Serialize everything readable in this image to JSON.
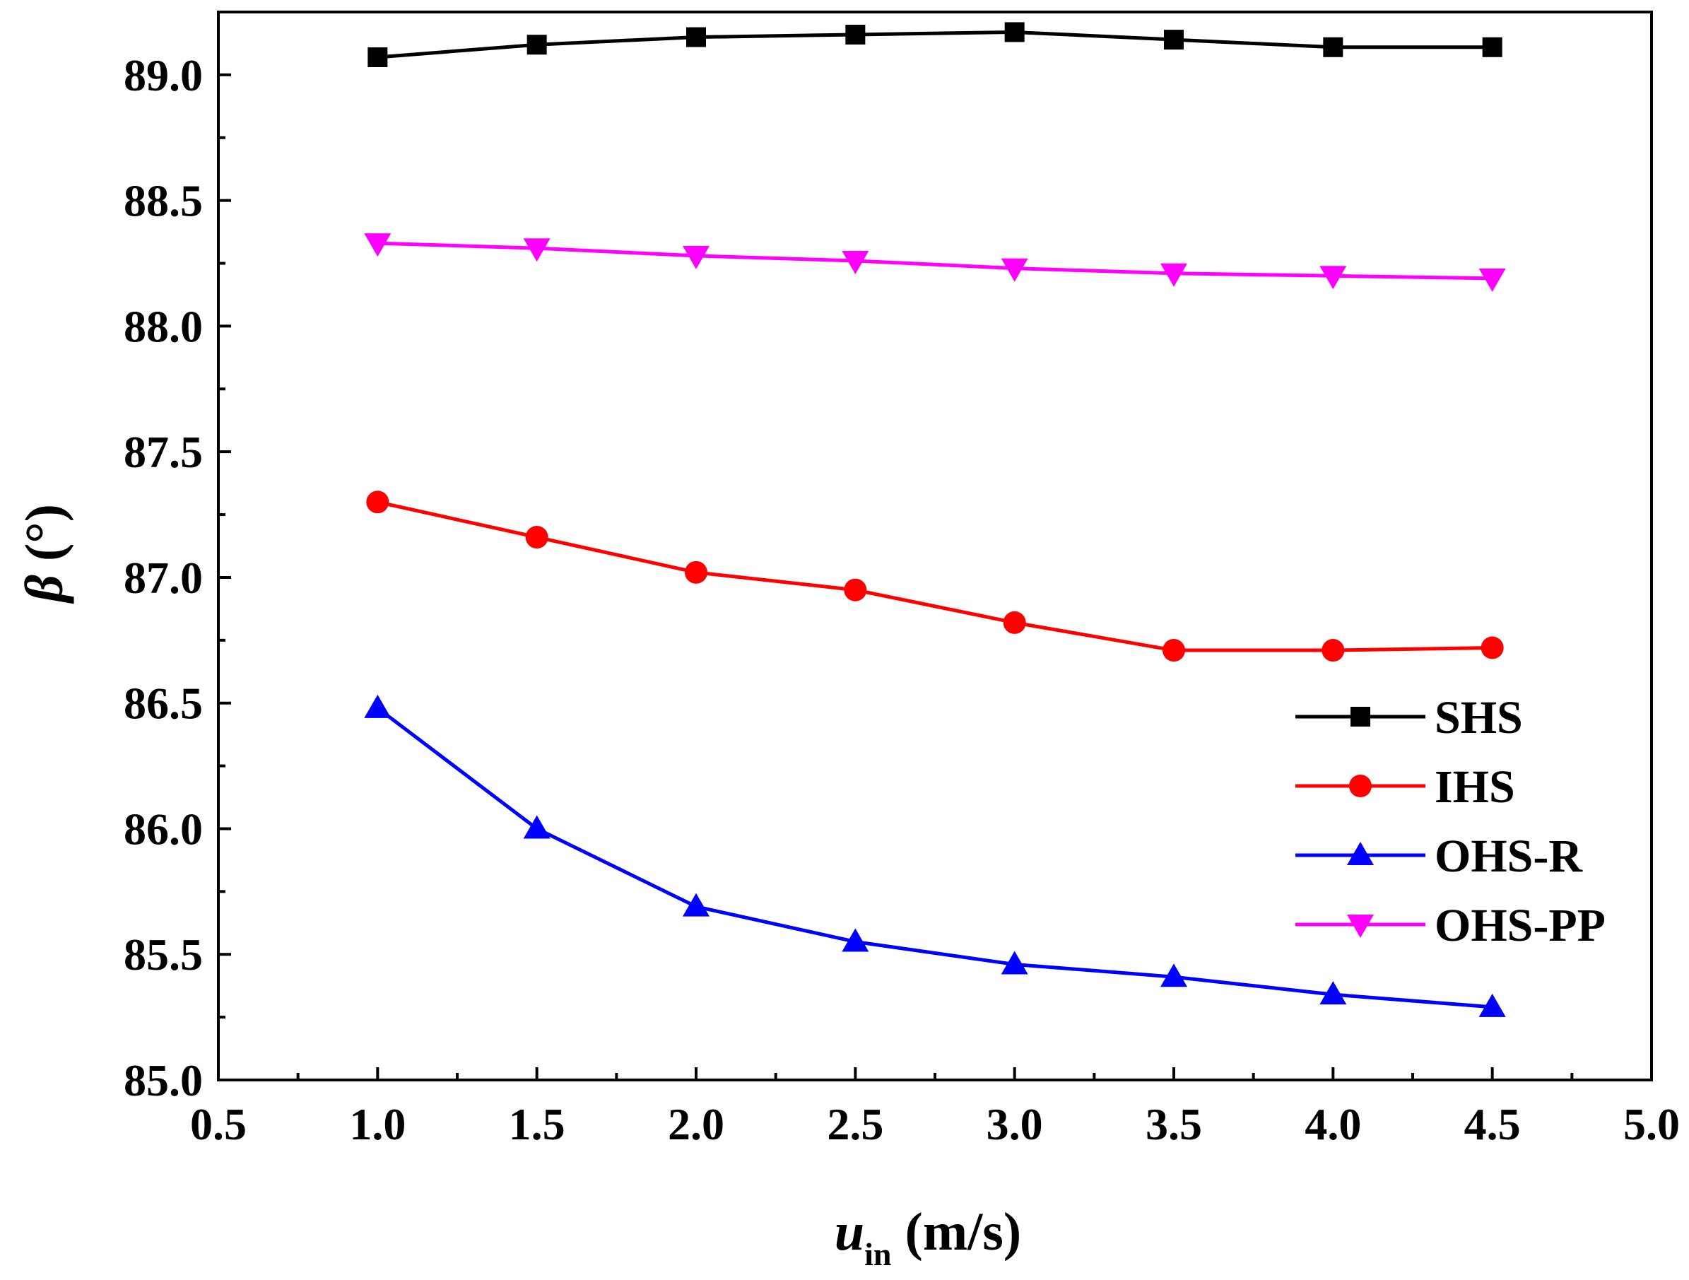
{
  "chart_data": {
    "type": "line",
    "title": "",
    "xlabel": {
      "main": "u",
      "sub": "in",
      "unit": "(m/s)"
    },
    "ylabel": {
      "symbol": "β",
      "unit": "(°)"
    },
    "xlim": [
      0.5,
      5.0
    ],
    "ylim": [
      85.0,
      89.25
    ],
    "xticks": [
      0.5,
      1.0,
      1.5,
      2.0,
      2.5,
      3.0,
      3.5,
      4.0,
      4.5,
      5.0
    ],
    "xtick_labels": [
      "0.5",
      "1.0",
      "1.5",
      "2.0",
      "2.5",
      "3.0",
      "3.5",
      "4.0",
      "4.5",
      "5.0"
    ],
    "yticks": [
      85.0,
      85.5,
      86.0,
      86.5,
      87.0,
      87.5,
      88.0,
      88.5,
      89.0
    ],
    "ytick_labels": [
      "85.0",
      "85.5",
      "86.0",
      "86.5",
      "87.0",
      "87.5",
      "88.0",
      "88.5",
      "89.0"
    ],
    "grid": false,
    "legend_position": "right",
    "x": [
      1.0,
      1.5,
      2.0,
      2.5,
      3.0,
      3.5,
      4.0,
      4.5
    ],
    "series": [
      {
        "name": "SHS",
        "color": "#000000",
        "marker": "square",
        "values": [
          89.07,
          89.12,
          89.15,
          89.16,
          89.17,
          89.14,
          89.11,
          89.11
        ]
      },
      {
        "name": "IHS",
        "color": "#ff0000",
        "marker": "circle",
        "values": [
          87.3,
          87.16,
          87.02,
          86.95,
          86.82,
          86.71,
          86.71,
          86.72
        ]
      },
      {
        "name": "OHS-R",
        "color": "#0000ff",
        "marker": "triangle-up",
        "values": [
          86.48,
          86.0,
          85.69,
          85.55,
          85.46,
          85.41,
          85.34,
          85.29
        ]
      },
      {
        "name": "OHS-PP",
        "color": "#ff00ff",
        "marker": "triangle-down",
        "values": [
          88.33,
          88.31,
          88.28,
          88.26,
          88.23,
          88.21,
          88.2,
          88.19
        ]
      }
    ]
  }
}
